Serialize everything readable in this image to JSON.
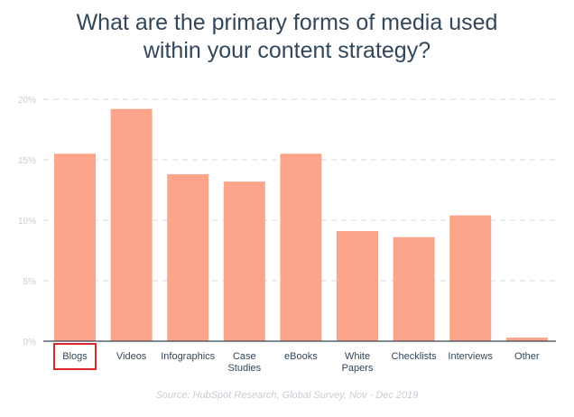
{
  "title_lines": [
    "What are the primary forms of media used",
    "within your content strategy?"
  ],
  "source": "Source: HubSpot Research, Global Survey, Nov - Dec 2019",
  "colors": {
    "bar": "#fda58a",
    "highlight_box": "#d9262c",
    "text": "#33475b",
    "axis_text": "#c8cdd4",
    "grid": "#dde2e8"
  },
  "chart_data": {
    "type": "bar",
    "categories": [
      "Blogs",
      "Videos",
      "Infographics",
      "Case Studies",
      "eBooks",
      "White Papers",
      "Checklists",
      "Interviews",
      "Other"
    ],
    "category_lines": [
      [
        "Blogs"
      ],
      [
        "Videos"
      ],
      [
        "Infographics"
      ],
      [
        "Case",
        "Studies"
      ],
      [
        "eBooks"
      ],
      [
        "White",
        "Papers"
      ],
      [
        "Checklists"
      ],
      [
        "Interviews"
      ],
      [
        "Other"
      ]
    ],
    "values": [
      15.5,
      19.2,
      13.8,
      13.2,
      15.5,
      9.1,
      8.6,
      10.4,
      0.3
    ],
    "yticks": [
      "0%",
      "5%",
      "10%",
      "15%",
      "20%"
    ],
    "ylim": [
      0,
      20
    ],
    "grid": true,
    "highlighted_category": "Blogs",
    "xlabel": "",
    "ylabel": ""
  }
}
